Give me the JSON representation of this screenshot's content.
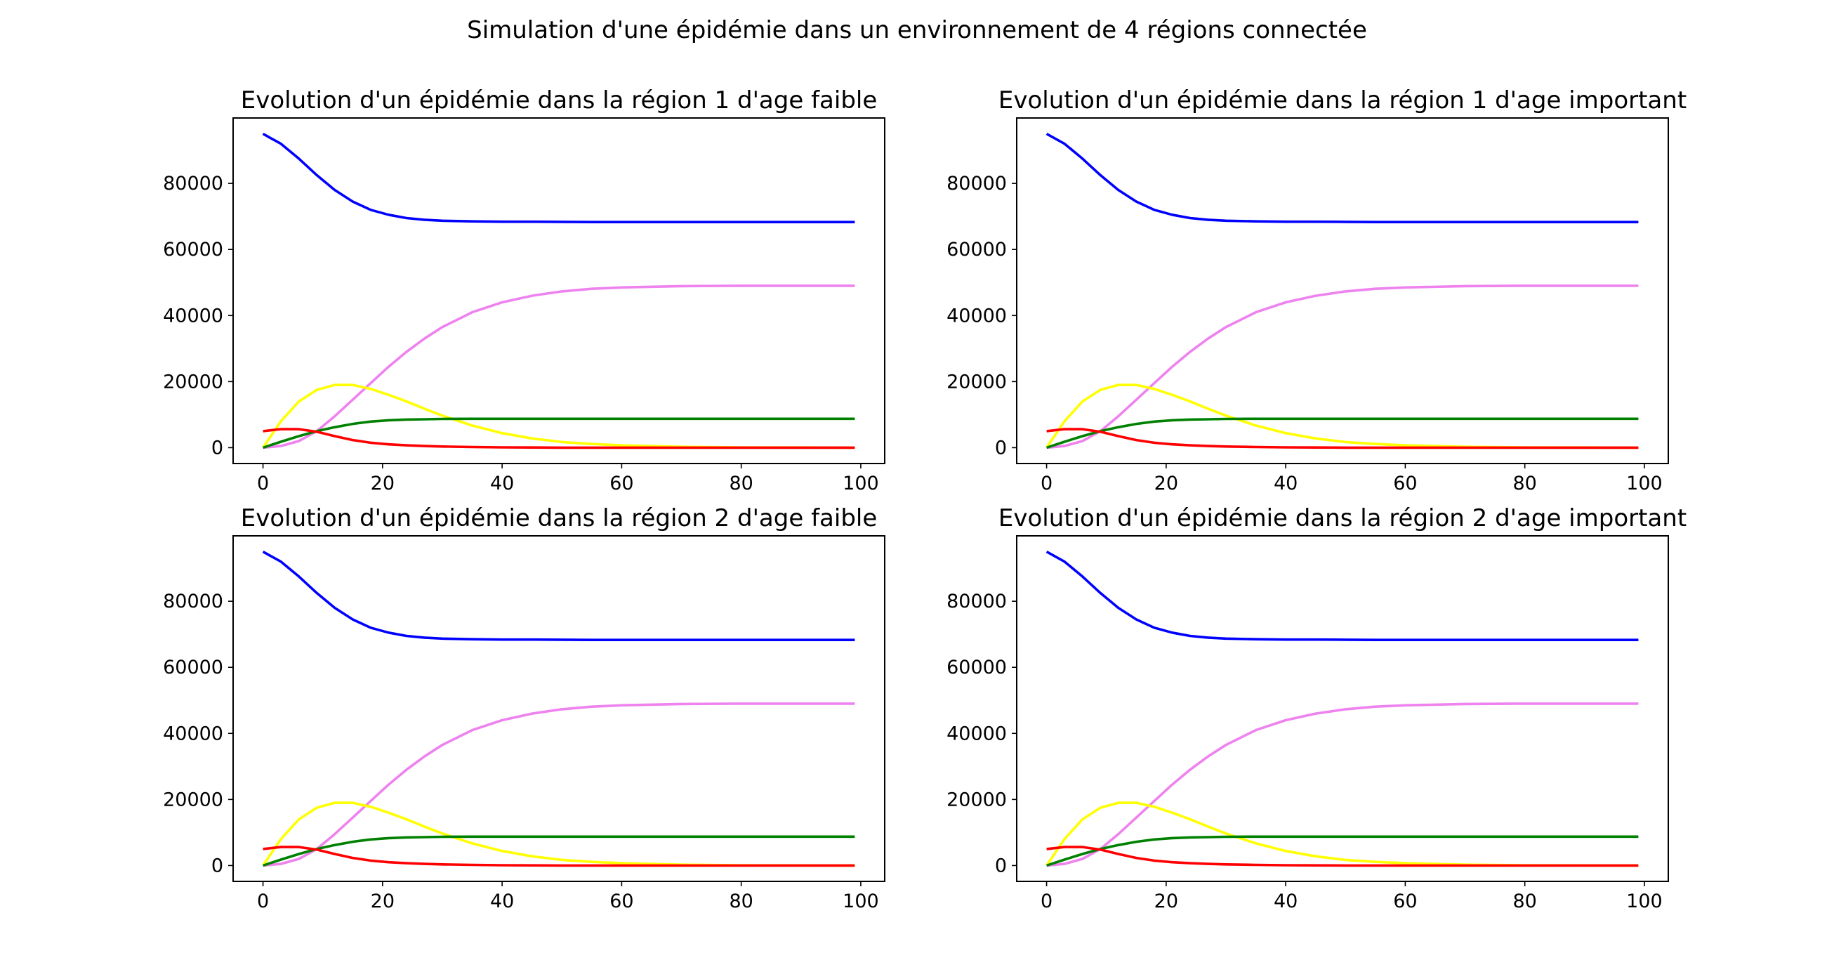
{
  "figure": {
    "title": "Simulation d'une épidémie dans un environnement de 4 régions connectée"
  },
  "colors": {
    "S": "#0000ff",
    "E": "#ffff00",
    "I": "#ff0000",
    "R": "#ee82ee",
    "D": "#008000"
  },
  "chart_data": [
    {
      "type": "line",
      "title": "Evolution d'un épidémie dans la région 1 d'age faible",
      "xlabel": "",
      "ylabel": "",
      "xlim": [
        -5,
        104
      ],
      "ylim": [
        -4800,
        99800
      ],
      "xticks": [
        0,
        20,
        40,
        60,
        80,
        100
      ],
      "xtick_labels": [
        "0",
        "20",
        "40",
        "60",
        "80",
        "100"
      ],
      "yticks": [
        0,
        20000,
        40000,
        60000,
        80000
      ],
      "ytick_labels": [
        "0",
        "20000",
        "40000",
        "60000",
        "80000"
      ],
      "x": [
        0,
        3,
        6,
        9,
        12,
        15,
        18,
        21,
        24,
        27,
        30,
        35,
        40,
        45,
        50,
        55,
        60,
        70,
        80,
        90,
        99
      ],
      "series": [
        {
          "color": "#0000ff",
          "values": [
            95000,
            92000,
            87500,
            82500,
            78000,
            74500,
            72000,
            70500,
            69500,
            69000,
            68700,
            68500,
            68400,
            68400,
            68350,
            68300,
            68300,
            68300,
            68300,
            68300,
            68300
          ]
        },
        {
          "color": "#ee82ee",
          "values": [
            0,
            500,
            2000,
            5000,
            9500,
            14500,
            19500,
            24500,
            29000,
            33000,
            36500,
            41000,
            44000,
            46000,
            47300,
            48100,
            48500,
            48900,
            49000,
            49000,
            49000
          ]
        },
        {
          "color": "#ffff00",
          "values": [
            0,
            8000,
            14000,
            17500,
            19000,
            19000,
            17800,
            16000,
            14000,
            11800,
            9700,
            6700,
            4400,
            2800,
            1700,
            1100,
            700,
            250,
            100,
            50,
            0
          ]
        },
        {
          "color": "#008000",
          "values": [
            0,
            1800,
            3500,
            5000,
            6200,
            7200,
            7900,
            8300,
            8500,
            8600,
            8700,
            8750,
            8750,
            8750,
            8750,
            8750,
            8750,
            8750,
            8750,
            8750,
            8750
          ]
        },
        {
          "color": "#ff0000",
          "values": [
            5000,
            5600,
            5600,
            4800,
            3500,
            2300,
            1500,
            1000,
            700,
            500,
            350,
            200,
            100,
            50,
            0,
            0,
            0,
            0,
            0,
            0,
            0
          ]
        }
      ]
    },
    {
      "type": "line",
      "title": "Evolution d'un épidémie dans la région 1 d'age important",
      "xlabel": "",
      "ylabel": "",
      "xlim": [
        -5,
        104
      ],
      "ylim": [
        -4800,
        99800
      ],
      "xticks": [
        0,
        20,
        40,
        60,
        80,
        100
      ],
      "xtick_labels": [
        "0",
        "20",
        "40",
        "60",
        "80",
        "100"
      ],
      "yticks": [
        0,
        20000,
        40000,
        60000,
        80000
      ],
      "ytick_labels": [
        "0",
        "20000",
        "40000",
        "60000",
        "80000"
      ],
      "x": [
        0,
        3,
        6,
        9,
        12,
        15,
        18,
        21,
        24,
        27,
        30,
        35,
        40,
        45,
        50,
        55,
        60,
        70,
        80,
        90,
        99
      ],
      "series": [
        {
          "color": "#0000ff",
          "values": [
            95000,
            92000,
            87500,
            82500,
            78000,
            74500,
            72000,
            70500,
            69500,
            69000,
            68700,
            68500,
            68400,
            68400,
            68350,
            68300,
            68300,
            68300,
            68300,
            68300,
            68300
          ]
        },
        {
          "color": "#ee82ee",
          "values": [
            0,
            500,
            2000,
            5000,
            9500,
            14500,
            19500,
            24500,
            29000,
            33000,
            36500,
            41000,
            44000,
            46000,
            47300,
            48100,
            48500,
            48900,
            49000,
            49000,
            49000
          ]
        },
        {
          "color": "#ffff00",
          "values": [
            0,
            8000,
            14000,
            17500,
            19000,
            19000,
            17800,
            16000,
            14000,
            11800,
            9700,
            6700,
            4400,
            2800,
            1700,
            1100,
            700,
            250,
            100,
            50,
            0
          ]
        },
        {
          "color": "#008000",
          "values": [
            0,
            1800,
            3500,
            5000,
            6200,
            7200,
            7900,
            8300,
            8500,
            8600,
            8700,
            8750,
            8750,
            8750,
            8750,
            8750,
            8750,
            8750,
            8750,
            8750,
            8750
          ]
        },
        {
          "color": "#ff0000",
          "values": [
            5000,
            5600,
            5600,
            4800,
            3500,
            2300,
            1500,
            1000,
            700,
            500,
            350,
            200,
            100,
            50,
            0,
            0,
            0,
            0,
            0,
            0,
            0
          ]
        }
      ]
    },
    {
      "type": "line",
      "title": "Evolution d'un épidémie dans la région 2 d'age faible",
      "xlabel": "",
      "ylabel": "",
      "xlim": [
        -5,
        104
      ],
      "ylim": [
        -4800,
        99800
      ],
      "xticks": [
        0,
        20,
        40,
        60,
        80,
        100
      ],
      "xtick_labels": [
        "0",
        "20",
        "40",
        "60",
        "80",
        "100"
      ],
      "yticks": [
        0,
        20000,
        40000,
        60000,
        80000
      ],
      "ytick_labels": [
        "0",
        "20000",
        "40000",
        "60000",
        "80000"
      ],
      "x": [
        0,
        3,
        6,
        9,
        12,
        15,
        18,
        21,
        24,
        27,
        30,
        35,
        40,
        45,
        50,
        55,
        60,
        70,
        80,
        90,
        99
      ],
      "series": [
        {
          "color": "#0000ff",
          "values": [
            95000,
            92000,
            87500,
            82500,
            78000,
            74500,
            72000,
            70500,
            69500,
            69000,
            68700,
            68500,
            68400,
            68400,
            68350,
            68300,
            68300,
            68300,
            68300,
            68300,
            68300
          ]
        },
        {
          "color": "#ee82ee",
          "values": [
            0,
            500,
            2000,
            5000,
            9500,
            14500,
            19500,
            24500,
            29000,
            33000,
            36500,
            41000,
            44000,
            46000,
            47300,
            48100,
            48500,
            48900,
            49000,
            49000,
            49000
          ]
        },
        {
          "color": "#ffff00",
          "values": [
            0,
            8000,
            14000,
            17500,
            19000,
            19000,
            17800,
            16000,
            14000,
            11800,
            9700,
            6700,
            4400,
            2800,
            1700,
            1100,
            700,
            250,
            100,
            50,
            0
          ]
        },
        {
          "color": "#008000",
          "values": [
            0,
            1800,
            3500,
            5000,
            6200,
            7200,
            7900,
            8300,
            8500,
            8600,
            8700,
            8750,
            8750,
            8750,
            8750,
            8750,
            8750,
            8750,
            8750,
            8750,
            8750
          ]
        },
        {
          "color": "#ff0000",
          "values": [
            5000,
            5600,
            5600,
            4800,
            3500,
            2300,
            1500,
            1000,
            700,
            500,
            350,
            200,
            100,
            50,
            0,
            0,
            0,
            0,
            0,
            0,
            0
          ]
        }
      ]
    },
    {
      "type": "line",
      "title": "Evolution d'un épidémie dans la région 2 d'age important",
      "xlabel": "",
      "ylabel": "",
      "xlim": [
        -5,
        104
      ],
      "ylim": [
        -4800,
        99800
      ],
      "xticks": [
        0,
        20,
        40,
        60,
        80,
        100
      ],
      "xtick_labels": [
        "0",
        "20",
        "40",
        "60",
        "80",
        "100"
      ],
      "yticks": [
        0,
        20000,
        40000,
        60000,
        80000
      ],
      "ytick_labels": [
        "0",
        "20000",
        "40000",
        "60000",
        "80000"
      ],
      "x": [
        0,
        3,
        6,
        9,
        12,
        15,
        18,
        21,
        24,
        27,
        30,
        35,
        40,
        45,
        50,
        55,
        60,
        70,
        80,
        90,
        99
      ],
      "series": [
        {
          "color": "#0000ff",
          "values": [
            95000,
            92000,
            87500,
            82500,
            78000,
            74500,
            72000,
            70500,
            69500,
            69000,
            68700,
            68500,
            68400,
            68400,
            68350,
            68300,
            68300,
            68300,
            68300,
            68300,
            68300
          ]
        },
        {
          "color": "#ee82ee",
          "values": [
            0,
            500,
            2000,
            5000,
            9500,
            14500,
            19500,
            24500,
            29000,
            33000,
            36500,
            41000,
            44000,
            46000,
            47300,
            48100,
            48500,
            48900,
            49000,
            49000,
            49000
          ]
        },
        {
          "color": "#ffff00",
          "values": [
            0,
            8000,
            14000,
            17500,
            19000,
            19000,
            17800,
            16000,
            14000,
            11800,
            9700,
            6700,
            4400,
            2800,
            1700,
            1100,
            700,
            250,
            100,
            50,
            0
          ]
        },
        {
          "color": "#008000",
          "values": [
            0,
            1800,
            3500,
            5000,
            6200,
            7200,
            7900,
            8300,
            8500,
            8600,
            8700,
            8750,
            8750,
            8750,
            8750,
            8750,
            8750,
            8750,
            8750,
            8750,
            8750
          ]
        },
        {
          "color": "#ff0000",
          "values": [
            5000,
            5600,
            5600,
            4800,
            3500,
            2300,
            1500,
            1000,
            700,
            500,
            350,
            200,
            100,
            50,
            0,
            0,
            0,
            0,
            0,
            0,
            0
          ]
        }
      ]
    }
  ]
}
